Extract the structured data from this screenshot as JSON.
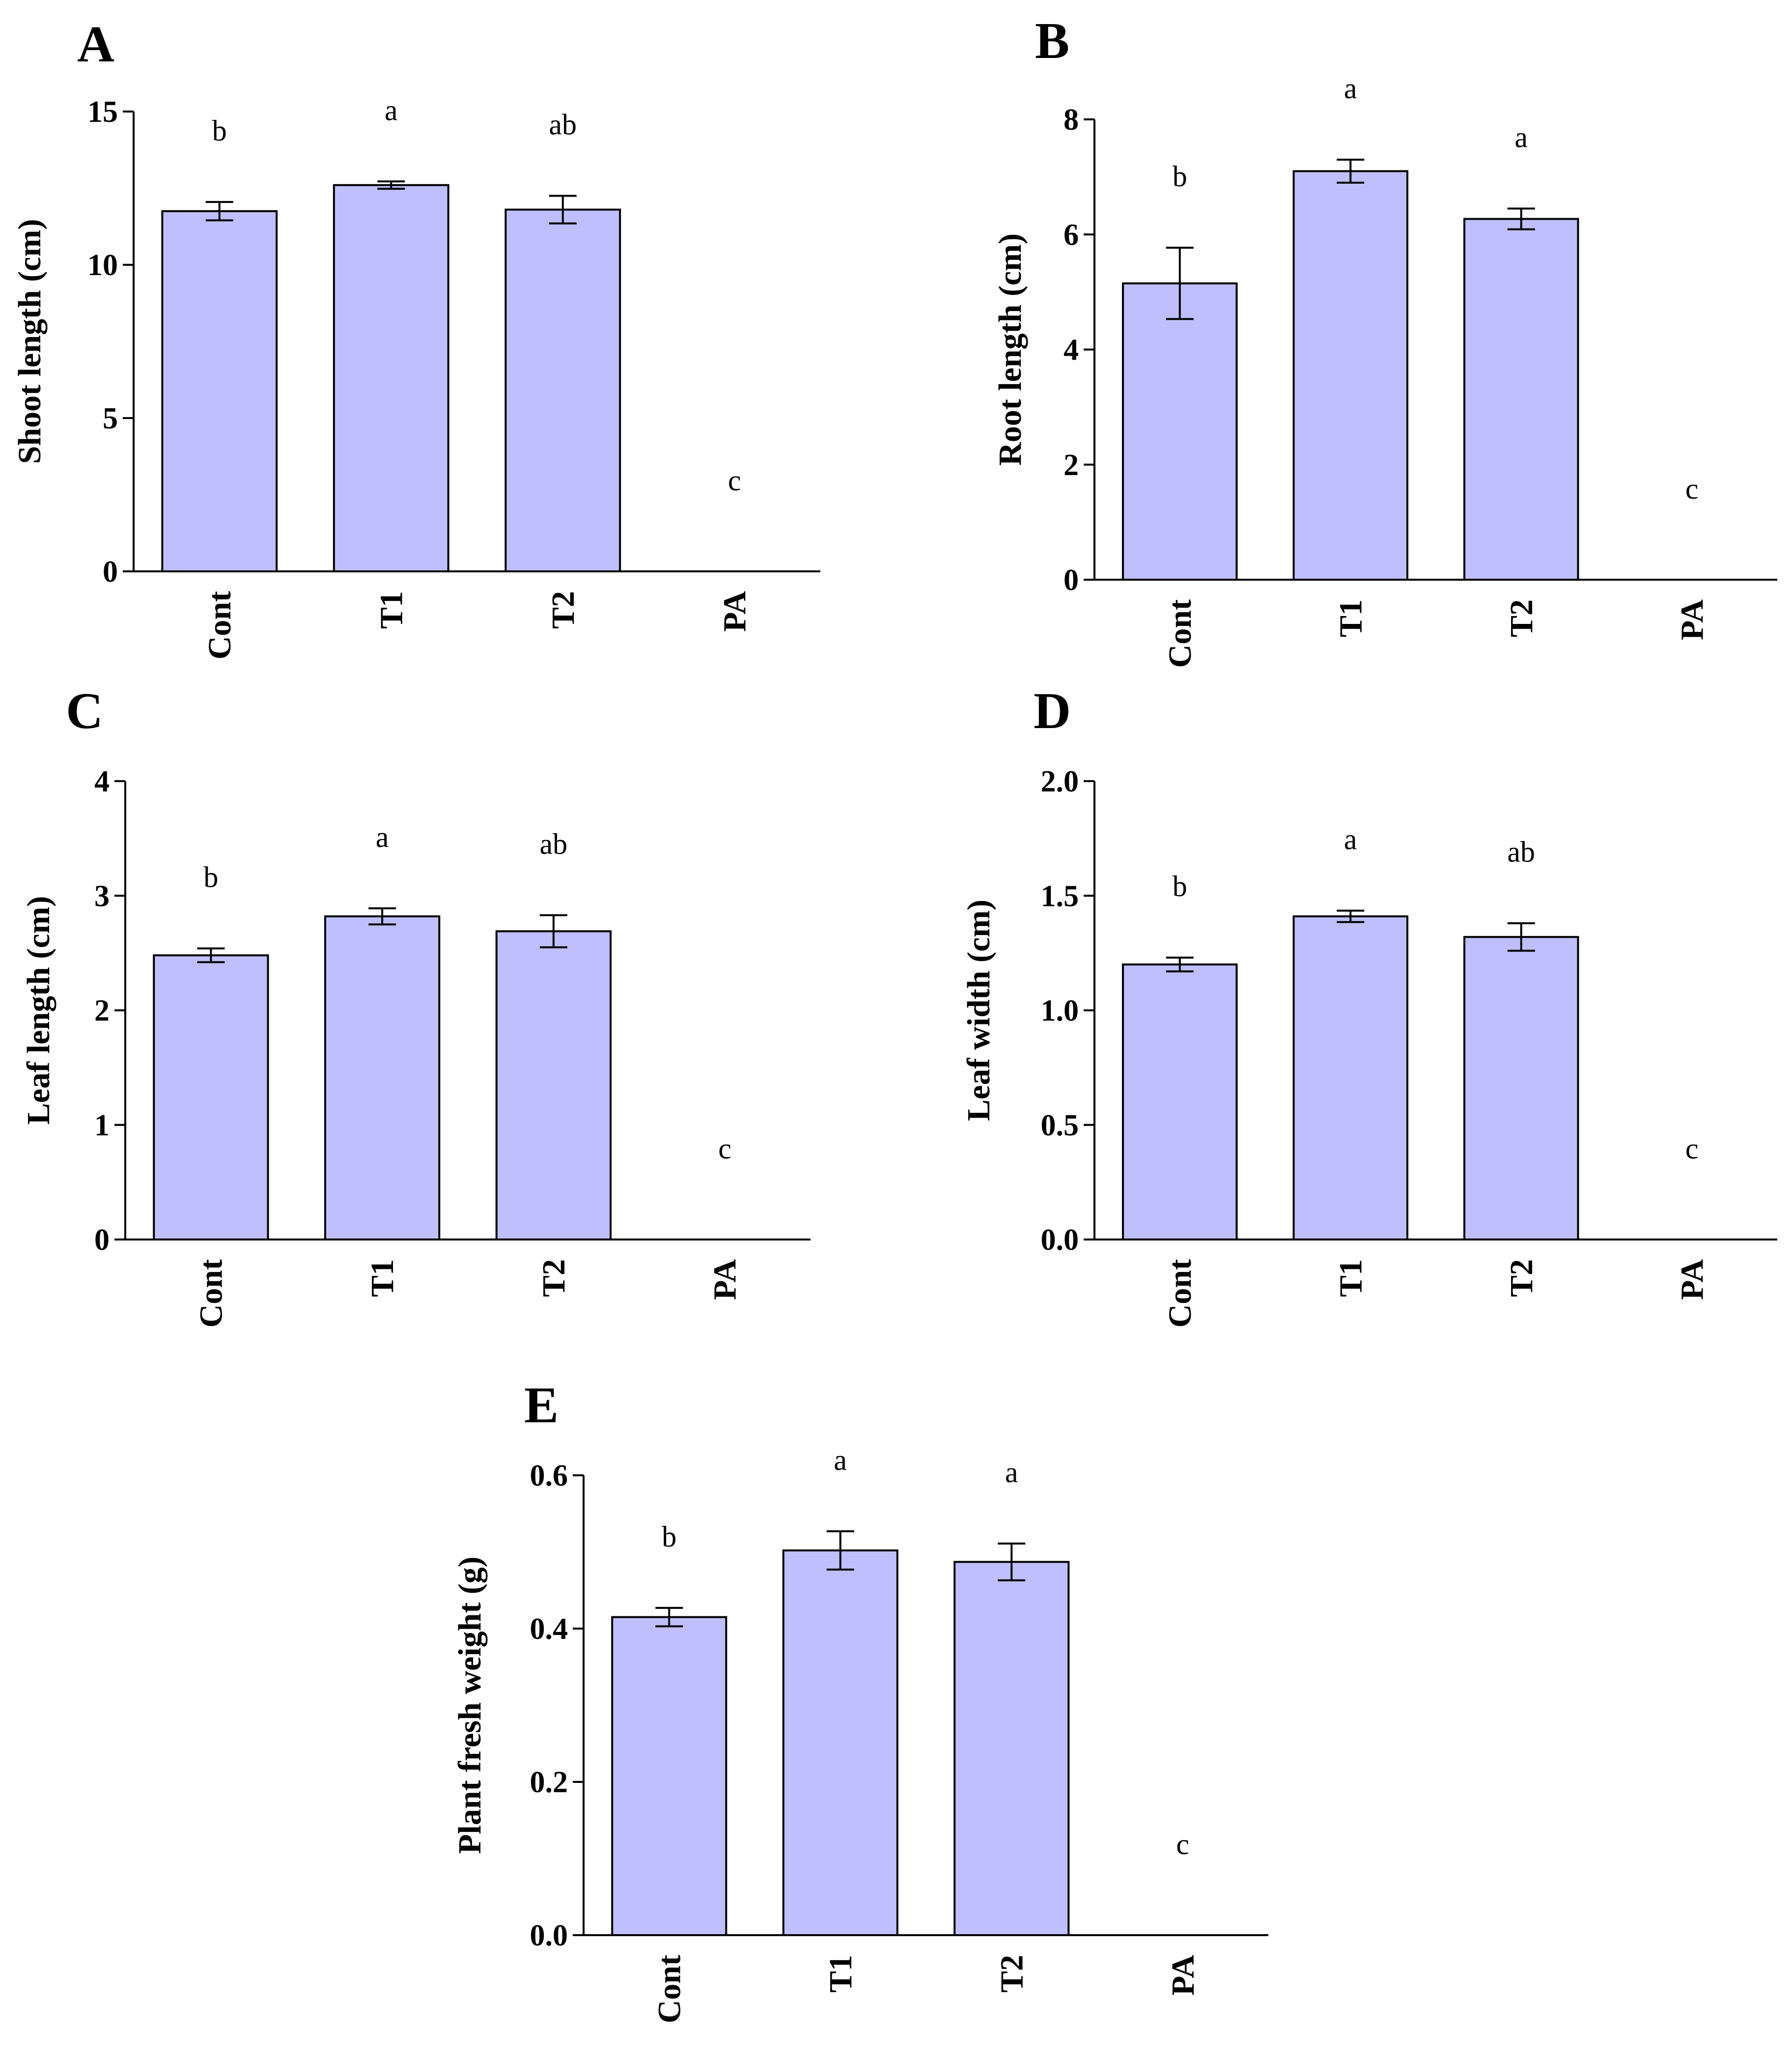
{
  "colors": {
    "bar_fill": "#bfbffd",
    "stroke": "#000000",
    "background": "#ffffff"
  },
  "chart_data": [
    {
      "panel": "A",
      "type": "bar",
      "categories": [
        "Cont",
        "T1",
        "T2",
        "PA"
      ],
      "values": [
        11.75,
        12.6,
        11.8,
        0
      ],
      "errors": [
        0.3,
        0.12,
        0.45,
        0
      ],
      "letters": [
        "b",
        "a",
        "ab",
        "c"
      ],
      "ylabel": "Shoot length (cm)",
      "ylim": [
        0,
        15
      ],
      "yticks": [
        0,
        5,
        10,
        15
      ],
      "ytick_labels": [
        "0",
        "5",
        "10",
        "15"
      ]
    },
    {
      "panel": "B",
      "type": "bar",
      "categories": [
        "Cont",
        "T1",
        "T2",
        "PA"
      ],
      "values": [
        5.15,
        7.1,
        6.27,
        0
      ],
      "errors": [
        0.62,
        0.2,
        0.18,
        0
      ],
      "letters": [
        "b",
        "a",
        "a",
        "c"
      ],
      "ylabel": "Root length (cm)",
      "ylim": [
        0,
        8
      ],
      "yticks": [
        0,
        2,
        4,
        6,
        8
      ],
      "ytick_labels": [
        "0",
        "2",
        "4",
        "6",
        "8"
      ]
    },
    {
      "panel": "C",
      "type": "bar",
      "categories": [
        "Cont",
        "T1",
        "T2",
        "PA"
      ],
      "values": [
        2.48,
        2.82,
        2.69,
        0
      ],
      "errors": [
        0.06,
        0.07,
        0.14,
        0
      ],
      "letters": [
        "b",
        "a",
        "ab",
        "c"
      ],
      "ylabel": "Leaf length (cm)",
      "ylim": [
        0,
        4
      ],
      "yticks": [
        0,
        1,
        2,
        3,
        4
      ],
      "ytick_labels": [
        "0",
        "1",
        "2",
        "3",
        "4"
      ]
    },
    {
      "panel": "D",
      "type": "bar",
      "categories": [
        "Cont",
        "T1",
        "T2",
        "PA"
      ],
      "values": [
        1.2,
        1.41,
        1.32,
        0
      ],
      "errors": [
        0.03,
        0.025,
        0.06,
        0
      ],
      "letters": [
        "b",
        "a",
        "ab",
        "c"
      ],
      "ylabel": "Leaf width (cm)",
      "ylim": [
        0,
        2
      ],
      "yticks": [
        0,
        0.5,
        1,
        1.5,
        2
      ],
      "ytick_labels": [
        "0.0",
        "0.5",
        "1.0",
        "1.5",
        "2.0"
      ]
    },
    {
      "panel": "E",
      "type": "bar",
      "categories": [
        "Cont",
        "T1",
        "T2",
        "PA"
      ],
      "values": [
        0.415,
        0.502,
        0.487,
        0
      ],
      "errors": [
        0.012,
        0.025,
        0.024,
        0
      ],
      "letters": [
        "b",
        "a",
        "a",
        "c"
      ],
      "ylabel": "Plant fresh weight (g)",
      "ylim": [
        0,
        0.6
      ],
      "yticks": [
        0,
        0.2,
        0.4,
        0.6
      ],
      "ytick_labels": [
        "0.0",
        "0.2",
        "0.4",
        "0.6"
      ]
    }
  ]
}
